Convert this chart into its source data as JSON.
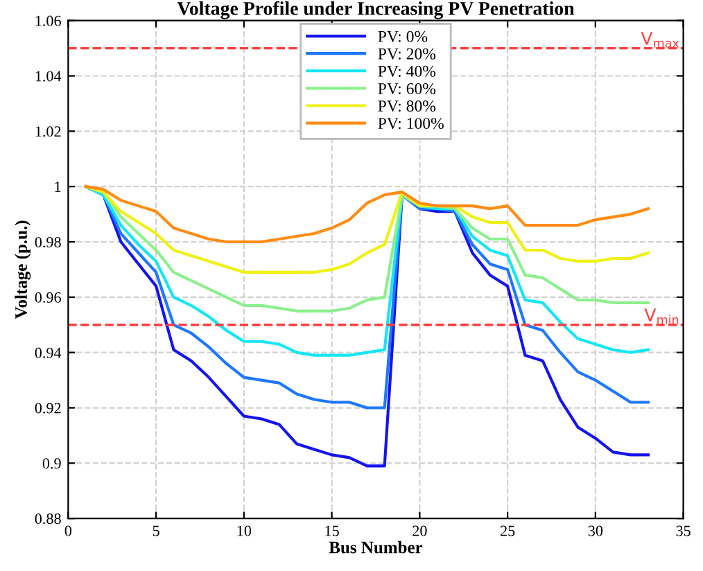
{
  "chart_data": {
    "type": "line",
    "title": "Voltage Profile under Increasing PV Penetration",
    "xlabel": "Bus Number",
    "ylabel": "Voltage (p.u.)",
    "x": [
      1,
      2,
      3,
      4,
      5,
      6,
      7,
      8,
      9,
      10,
      11,
      12,
      13,
      14,
      15,
      16,
      17,
      18,
      19,
      20,
      21,
      22,
      23,
      24,
      25,
      26,
      27,
      28,
      29,
      30,
      31,
      32,
      33
    ],
    "series": [
      {
        "name": "PV: 0%",
        "color": "#1414f0",
        "values": [
          1.0,
          0.997,
          0.98,
          0.972,
          0.964,
          0.941,
          0.937,
          0.931,
          0.924,
          0.917,
          0.916,
          0.914,
          0.907,
          0.905,
          0.903,
          0.902,
          0.899,
          0.899,
          0.997,
          0.992,
          0.991,
          0.991,
          0.976,
          0.968,
          0.964,
          0.939,
          0.937,
          0.923,
          0.913,
          0.909,
          0.904,
          0.903,
          0.903
        ]
      },
      {
        "name": "PV: 20%",
        "color": "#1e78ff",
        "values": [
          1.0,
          0.997,
          0.983,
          0.976,
          0.969,
          0.95,
          0.947,
          0.942,
          0.936,
          0.931,
          0.93,
          0.929,
          0.925,
          0.923,
          0.922,
          0.922,
          0.92,
          0.92,
          0.997,
          0.992,
          0.992,
          0.991,
          0.979,
          0.972,
          0.97,
          0.95,
          0.948,
          0.94,
          0.933,
          0.93,
          0.926,
          0.922,
          0.922
        ]
      },
      {
        "name": "PV: 40%",
        "color": "#14e6f5",
        "values": [
          1.0,
          0.997,
          0.986,
          0.979,
          0.973,
          0.96,
          0.957,
          0.953,
          0.948,
          0.944,
          0.944,
          0.943,
          0.94,
          0.939,
          0.939,
          0.939,
          0.94,
          0.941,
          0.997,
          0.993,
          0.992,
          0.992,
          0.982,
          0.977,
          0.975,
          0.959,
          0.958,
          0.951,
          0.945,
          0.943,
          0.941,
          0.94,
          0.941
        ]
      },
      {
        "name": "PV: 60%",
        "color": "#8cf08c",
        "values": [
          1.0,
          0.998,
          0.989,
          0.983,
          0.977,
          0.969,
          0.966,
          0.963,
          0.96,
          0.957,
          0.957,
          0.956,
          0.955,
          0.955,
          0.955,
          0.956,
          0.959,
          0.96,
          0.997,
          0.993,
          0.993,
          0.992,
          0.985,
          0.981,
          0.981,
          0.968,
          0.967,
          0.963,
          0.959,
          0.959,
          0.958,
          0.958,
          0.958
        ]
      },
      {
        "name": "PV: 80%",
        "color": "#f0f014",
        "values": [
          1.0,
          0.998,
          0.991,
          0.987,
          0.983,
          0.977,
          0.975,
          0.973,
          0.971,
          0.969,
          0.969,
          0.969,
          0.969,
          0.969,
          0.97,
          0.972,
          0.976,
          0.979,
          0.998,
          0.993,
          0.993,
          0.993,
          0.989,
          0.987,
          0.987,
          0.977,
          0.977,
          0.974,
          0.973,
          0.973,
          0.974,
          0.974,
          0.976
        ]
      },
      {
        "name": "PV: 100%",
        "color": "#ff8c14",
        "values": [
          1.0,
          0.999,
          0.995,
          0.993,
          0.991,
          0.985,
          0.983,
          0.981,
          0.98,
          0.98,
          0.98,
          0.981,
          0.982,
          0.983,
          0.985,
          0.988,
          0.994,
          0.997,
          0.998,
          0.994,
          0.993,
          0.993,
          0.993,
          0.992,
          0.993,
          0.986,
          0.986,
          0.986,
          0.986,
          0.988,
          0.989,
          0.99,
          0.992
        ]
      }
    ],
    "ref_lines": [
      {
        "axis": "y",
        "value": 1.05,
        "label": "V$_{max}$",
        "color": "#ff3c3c",
        "line_style": "dashed"
      },
      {
        "axis": "y",
        "value": 0.95,
        "label": "V$_{min}$",
        "color": "#ff3c3c",
        "line_style": "dashed"
      }
    ],
    "xlim": [
      0,
      35
    ],
    "xticks": [
      0,
      5,
      10,
      15,
      20,
      25,
      30,
      35
    ],
    "ylim": [
      0.88,
      1.06
    ],
    "yticks": [
      0.88,
      0.9,
      0.92,
      0.94,
      0.96,
      0.98,
      1,
      1.02,
      1.04,
      1.06
    ],
    "grid": true,
    "legend": "top",
    "marker": "none",
    "line_style": "solid"
  }
}
